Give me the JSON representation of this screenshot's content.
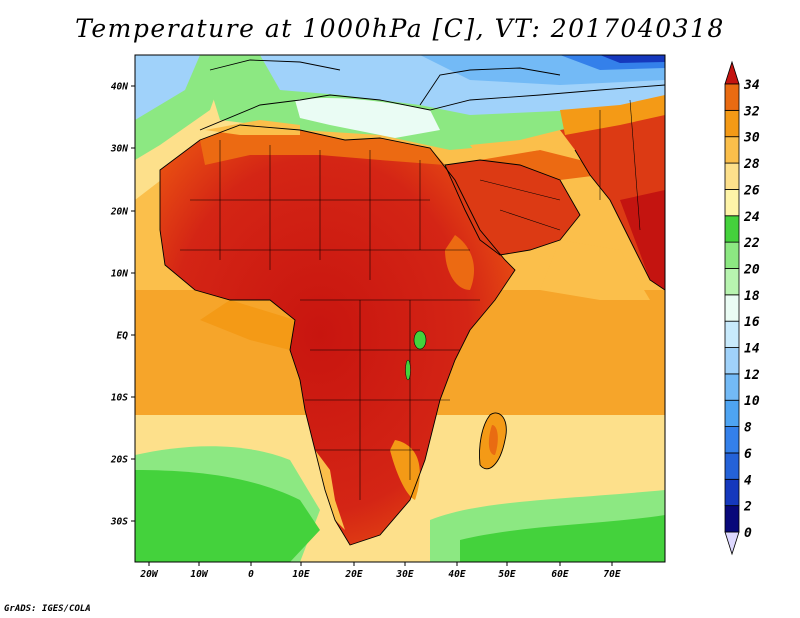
{
  "title": "Temperature at 1000hPa [C], VT: 2017040318",
  "credit": "GrADS: IGES/COLA",
  "map": {
    "lon_range": [
      -22,
      80
    ],
    "lat_range": [
      -36,
      45
    ],
    "x_tick_labels": [
      "20W",
      "10W",
      "0",
      "10E",
      "20E",
      "30E",
      "40E",
      "50E",
      "60E",
      "70E"
    ],
    "y_tick_labels": [
      "40N",
      "30N",
      "20N",
      "10N",
      "EQ",
      "10S",
      "20S",
      "30S"
    ],
    "colors": {
      "water_north": "#8cc4f0",
      "water_med": "#e8fafe",
      "ocean_main": "#fbbf4b",
      "ocean_south": "#fde08b",
      "ocean_cool": "#37c93a",
      "land_hot": "#d42212",
      "land_warm": "#ec6a12",
      "coast_lines": "#000000"
    }
  },
  "colorbar": {
    "labels": [
      "0",
      "2",
      "4",
      "6",
      "8",
      "10",
      "12",
      "14",
      "16",
      "18",
      "20",
      "22",
      "24",
      "26",
      "28",
      "30",
      "32",
      "34"
    ],
    "colors": [
      "#08087a",
      "#1538bd",
      "#2462d8",
      "#3480ea",
      "#4ea4f2",
      "#73baf6",
      "#a0d2fa",
      "#c8eafc",
      "#eafcf4",
      "#b8f4b0",
      "#8ce882",
      "#44d23c",
      "#fef4a8",
      "#fde08b",
      "#fbbf4b",
      "#f49a16",
      "#e96b12",
      "#dc3a14",
      "#c41410"
    ]
  }
}
